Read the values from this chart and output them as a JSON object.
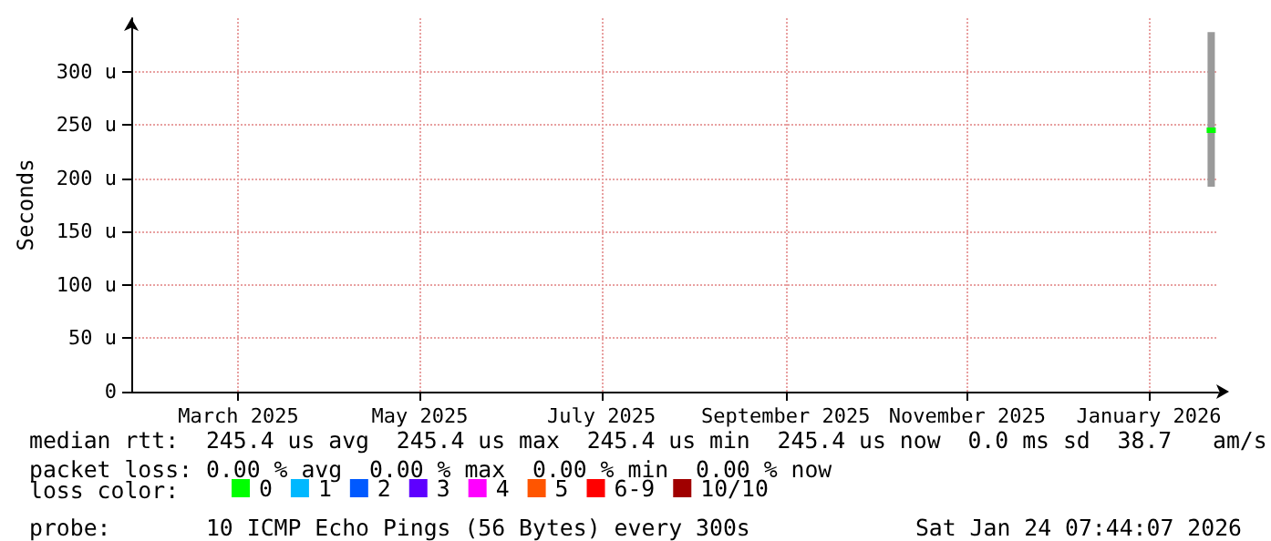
{
  "chart_data": {
    "type": "line",
    "ylabel": "Seconds",
    "legend_title": "loss color:",
    "x": [
      "2026-01-22"
    ],
    "series": [
      {
        "name": "0",
        "color": "#00ff00",
        "values": [
          245
        ],
        "errors": [
          [
            192,
            337
          ]
        ]
      },
      {
        "name": "1",
        "color": "#00b8ff",
        "values": [
          null
        ]
      },
      {
        "name": "2",
        "color": "#0059ff",
        "values": [
          null
        ]
      },
      {
        "name": "3",
        "color": "#5e00ff",
        "values": [
          null
        ]
      },
      {
        "name": "4",
        "color": "#ff00ff",
        "values": [
          null
        ]
      },
      {
        "name": "5",
        "color": "#ff5500",
        "values": [
          null
        ]
      },
      {
        "name": "6-9",
        "color": "#ff0000",
        "values": [
          null
        ]
      },
      {
        "name": "10/10",
        "color": "#a00000",
        "values": [
          null
        ]
      }
    ],
    "xlim": [
      "2025-01-24",
      "2026-01-24T07:44"
    ],
    "xticks": [
      {
        "value": "2025-03-01",
        "label": "March 2025"
      },
      {
        "value": "2025-05-01",
        "label": "May 2025"
      },
      {
        "value": "2025-07-01",
        "label": "July 2025"
      },
      {
        "value": "2025-09-01",
        "label": "September 2025"
      },
      {
        "value": "2025-11-01",
        "label": "November 2025"
      },
      {
        "value": "2026-01-01",
        "label": "January 2026"
      }
    ],
    "ylim": [
      0,
      350
    ],
    "yticks": [
      0,
      {
        "value": 50,
        "label": "50 u"
      },
      {
        "value": 100,
        "label": "100 u"
      },
      {
        "value": 150,
        "label": "150 u"
      },
      {
        "value": 200,
        "label": "200 u"
      },
      {
        "value": 250,
        "label": "250 u"
      },
      {
        "value": 300,
        "label": "300 u"
      }
    ],
    "grid": true,
    "legend": "bottom",
    "marker": "square",
    "annotations": [
      "median rtt:  245.4 us avg  245.4 us max  245.4 us min  245.4 us now  0.0 ms sd  38.7   am/s",
      "packet loss: 0.00 % avg  0.00 % max  0.00 % min  0.00 % now",
      "probe:       10 ICMP Echo Pings (56 Bytes) every 300s",
      "Sat Jan 24 07:44:07 2026"
    ]
  }
}
